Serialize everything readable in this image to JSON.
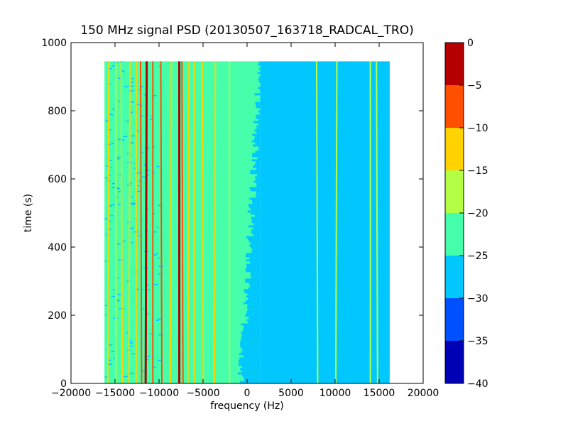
{
  "chart_data": {
    "type": "heatmap",
    "title": "150 MHz signal PSD (20130507_163718_RADCAL_TRO)",
    "xlabel": "frequency (Hz)",
    "ylabel": "time (s)",
    "xlim": [
      -20000,
      20000
    ],
    "ylim": [
      0,
      1000
    ],
    "xticks": [
      -20000,
      -15000,
      -10000,
      -5000,
      0,
      5000,
      10000,
      15000,
      20000
    ],
    "xtick_labels": [
      "−20000",
      "−15000",
      "−10000",
      "−5000",
      "0",
      "5000",
      "10000",
      "15000",
      "20000"
    ],
    "yticks": [
      0,
      200,
      400,
      600,
      800,
      1000
    ],
    "ytick_labels": [
      "0",
      "200",
      "400",
      "600",
      "800",
      "1000"
    ],
    "data_extent": {
      "x": [
        -16200,
        16200
      ],
      "y": [
        0,
        945
      ]
    },
    "colorbar": {
      "ticks": [
        0,
        -5,
        -10,
        -15,
        -20,
        -25,
        -30,
        -35,
        -40
      ],
      "tick_labels": [
        "0",
        "−5",
        "−10",
        "−15",
        "−20",
        "−25",
        "−30",
        "−35",
        "−40"
      ],
      "levels": [
        {
          "range": [
            -5,
            0
          ],
          "color": "#b40000"
        },
        {
          "range": [
            -10,
            -5
          ],
          "color": "#ff5000"
        },
        {
          "range": [
            -15,
            -10
          ],
          "color": "#ffd200"
        },
        {
          "range": [
            -20,
            -15
          ],
          "color": "#b4ff46"
        },
        {
          "range": [
            -25,
            -20
          ],
          "color": "#46ffaa"
        },
        {
          "range": [
            -30,
            -25
          ],
          "color": "#00c8ff"
        },
        {
          "range": [
            -35,
            -30
          ],
          "color": "#0050ff"
        },
        {
          "range": [
            -40,
            -35
          ],
          "color": "#0000b4"
        }
      ]
    },
    "regions": [
      {
        "x": [
          -16200,
          -2500
        ],
        "level": -22.5,
        "color": "#46ffaa"
      },
      {
        "x": [
          -2500,
          1500
        ],
        "level": -22.5,
        "color": "#46ffaa"
      },
      {
        "x": [
          1500,
          16200
        ],
        "level": -27.5,
        "color": "#00c8ff"
      },
      {
        "x": [
          -16200,
          -10000
        ],
        "level": -27.5,
        "color": "#00c8ff",
        "pattern": "speckle"
      }
    ],
    "lines": [
      {
        "x": -15700,
        "level": -12.5,
        "color": "#ffd200"
      },
      {
        "x": -14900,
        "level": -17.5,
        "color": "#b4ff46"
      },
      {
        "x": -14300,
        "level": -12.5,
        "color": "#ffd200"
      },
      {
        "x": -13300,
        "level": -12.5,
        "color": "#ffd200"
      },
      {
        "x": -12600,
        "level": -12.5,
        "color": "#ffd200"
      },
      {
        "x": -12100,
        "level": -7.5,
        "color": "#ff5000"
      },
      {
        "x": -11400,
        "level": -2.5,
        "color": "#b40000"
      },
      {
        "x": -10700,
        "level": -7.5,
        "color": "#ff5000"
      },
      {
        "x": -9800,
        "level": -7.5,
        "color": "#ff5000"
      },
      {
        "x": -8600,
        "level": -12.5,
        "color": "#ffd200"
      },
      {
        "x": -7700,
        "level": -2.5,
        "color": "#b40000"
      },
      {
        "x": -7400,
        "level": -7.5,
        "color": "#ff5000"
      },
      {
        "x": -6600,
        "level": -12.5,
        "color": "#ffd200"
      },
      {
        "x": -6000,
        "level": -12.5,
        "color": "#ffd200"
      },
      {
        "x": -5100,
        "level": -12.5,
        "color": "#ffd200"
      },
      {
        "x": -3600,
        "level": -12.5,
        "color": "#ffd200"
      },
      {
        "x": -2000,
        "level": -17.5,
        "color": "#b4ff46"
      },
      {
        "x": 7900,
        "level": -17.5,
        "color": "#b4ff46"
      },
      {
        "x": 10200,
        "level": -17.5,
        "color": "#b4ff46"
      },
      {
        "x": 14000,
        "level": -17.5,
        "color": "#b4ff46"
      },
      {
        "x": 14700,
        "level": -17.5,
        "color": "#b4ff46"
      }
    ]
  }
}
